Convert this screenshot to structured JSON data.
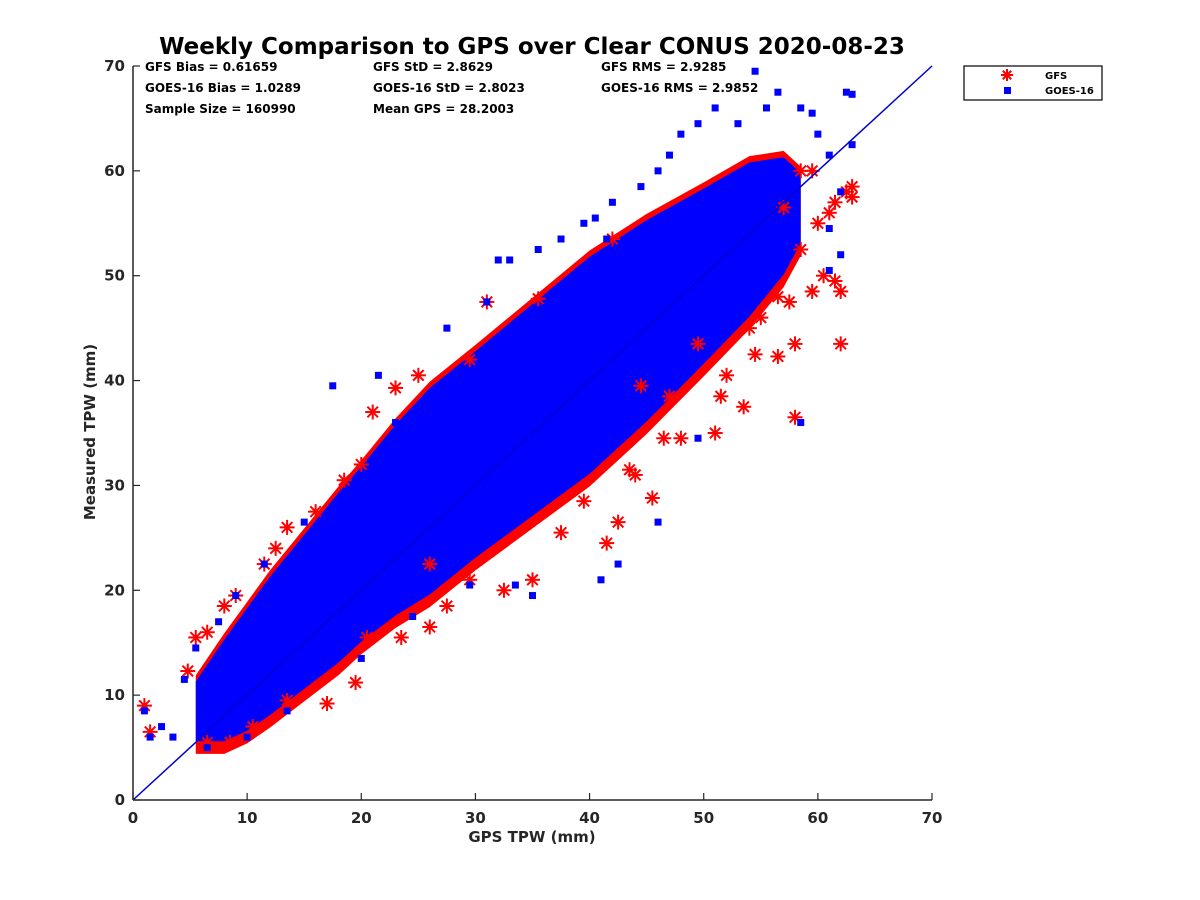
{
  "chart_data": {
    "type": "scatter",
    "title": "Weekly Comparison to GPS over Clear CONUS 2020-08-23",
    "xlabel": "GPS TPW (mm)",
    "ylabel": "Measured TPW (mm)",
    "xlim": [
      0,
      70
    ],
    "ylim": [
      0,
      70
    ],
    "xticks": [
      "0",
      "10",
      "20",
      "30",
      "40",
      "50",
      "60",
      "70"
    ],
    "yticks": [
      "0",
      "10",
      "20",
      "30",
      "40",
      "50",
      "60",
      "70"
    ],
    "grid": false,
    "legend_position": "top-right-outside",
    "reference_line": {
      "x": [
        0,
        70
      ],
      "y": [
        0,
        70
      ],
      "color": "#0000cc"
    },
    "stats": [
      [
        "GFS Bias = 0.61659",
        "GFS StD = 2.8629",
        "GFS RMS = 2.9285"
      ],
      [
        "GOES-16 Bias = 1.0289",
        "GOES-16 StD = 2.8023",
        "GOES-16 RMS = 2.9852"
      ],
      [
        "Sample Size = 160990",
        "Mean GPS = 28.2003",
        ""
      ]
    ],
    "series": [
      {
        "name": "GFS",
        "color": "#ff0000",
        "marker": "asterisk",
        "points": [
          [
            1.0,
            9.0
          ],
          [
            1.5,
            6.5
          ],
          [
            4.8,
            12.3
          ],
          [
            5.5,
            15.5
          ],
          [
            6.5,
            16.0
          ],
          [
            8.0,
            18.5
          ],
          [
            9.0,
            19.5
          ],
          [
            11.5,
            22.5
          ],
          [
            12.5,
            24.0
          ],
          [
            13.5,
            26.0
          ],
          [
            16.0,
            27.5
          ],
          [
            18.5,
            30.5
          ],
          [
            20.0,
            32.0
          ],
          [
            21.0,
            37.0
          ],
          [
            23.0,
            39.3
          ],
          [
            25.0,
            40.5
          ],
          [
            29.5,
            42.0
          ],
          [
            31.0,
            47.5
          ],
          [
            35.5,
            47.8
          ],
          [
            6.5,
            5.5
          ],
          [
            8.5,
            5.5
          ],
          [
            10.5,
            7.0
          ],
          [
            13.5,
            9.5
          ],
          [
            17.0,
            9.2
          ],
          [
            19.5,
            11.2
          ],
          [
            20.5,
            15.5
          ],
          [
            23.5,
            15.5
          ],
          [
            26.0,
            16.5
          ],
          [
            27.5,
            18.5
          ],
          [
            29.5,
            21.0
          ],
          [
            32.5,
            20.0
          ],
          [
            35.0,
            21.0
          ],
          [
            37.5,
            25.5
          ],
          [
            39.5,
            28.5
          ],
          [
            41.5,
            24.5
          ],
          [
            42.5,
            26.5
          ],
          [
            45.5,
            28.8
          ],
          [
            43.5,
            31.5
          ],
          [
            44.0,
            31.0
          ],
          [
            46.5,
            34.5
          ],
          [
            48.0,
            34.5
          ],
          [
            51.0,
            35.0
          ],
          [
            51.5,
            38.5
          ],
          [
            53.5,
            37.5
          ],
          [
            54.5,
            42.5
          ],
          [
            56.5,
            42.3
          ],
          [
            58.0,
            36.5
          ],
          [
            58.0,
            43.5
          ],
          [
            62.0,
            43.5
          ],
          [
            52.0,
            40.5
          ],
          [
            54.0,
            45.0
          ],
          [
            55.0,
            46.0
          ],
          [
            56.5,
            48.0
          ],
          [
            57.5,
            47.5
          ],
          [
            59.5,
            48.5
          ],
          [
            60.5,
            50.0
          ],
          [
            61.5,
            49.5
          ],
          [
            62.0,
            48.5
          ],
          [
            58.5,
            52.5
          ],
          [
            60.0,
            55.0
          ],
          [
            61.0,
            56.0
          ],
          [
            61.5,
            57.0
          ],
          [
            62.5,
            58.0
          ],
          [
            63.0,
            58.5
          ],
          [
            63.0,
            57.5
          ],
          [
            58.5,
            60.0
          ],
          [
            59.5,
            60.0
          ],
          [
            57.0,
            56.5
          ],
          [
            42.0,
            53.5
          ],
          [
            44.5,
            39.5
          ],
          [
            47.0,
            38.5
          ],
          [
            49.5,
            43.5
          ],
          [
            26.0,
            22.5
          ]
        ]
      },
      {
        "name": "GOES-16",
        "color": "#0000ff",
        "marker": "square",
        "points": [
          [
            1.0,
            8.5
          ],
          [
            1.5,
            6.0
          ],
          [
            4.5,
            11.5
          ],
          [
            5.5,
            14.5
          ],
          [
            7.5,
            17.0
          ],
          [
            9.0,
            19.5
          ],
          [
            11.5,
            22.5
          ],
          [
            15.0,
            26.5
          ],
          [
            17.5,
            39.5
          ],
          [
            21.5,
            40.5
          ],
          [
            23.0,
            36.0
          ],
          [
            27.5,
            45.0
          ],
          [
            31.0,
            47.5
          ],
          [
            32.0,
            51.5
          ],
          [
            33.0,
            51.5
          ],
          [
            35.5,
            52.5
          ],
          [
            37.5,
            53.5
          ],
          [
            39.5,
            55.0
          ],
          [
            40.5,
            55.5
          ],
          [
            41.5,
            53.5
          ],
          [
            42.0,
            57.0
          ],
          [
            44.5,
            58.5
          ],
          [
            46.0,
            60.0
          ],
          [
            47.0,
            61.5
          ],
          [
            48.0,
            63.5
          ],
          [
            49.5,
            64.5
          ],
          [
            51.0,
            66.0
          ],
          [
            53.0,
            64.5
          ],
          [
            54.5,
            69.5
          ],
          [
            55.5,
            66.0
          ],
          [
            56.5,
            67.5
          ],
          [
            58.5,
            66.0
          ],
          [
            59.5,
            65.5
          ],
          [
            62.5,
            67.5
          ],
          [
            63.0,
            67.3
          ],
          [
            63.0,
            62.5
          ],
          [
            60.0,
            63.5
          ],
          [
            61.0,
            61.5
          ],
          [
            62.0,
            58.0
          ],
          [
            61.0,
            54.5
          ],
          [
            62.0,
            52.0
          ],
          [
            61.0,
            50.5
          ],
          [
            58.5,
            36.0
          ],
          [
            49.5,
            34.5
          ],
          [
            46.0,
            26.5
          ],
          [
            42.5,
            22.5
          ],
          [
            41.0,
            21.0
          ],
          [
            35.0,
            19.5
          ],
          [
            33.5,
            20.5
          ],
          [
            29.5,
            20.5
          ],
          [
            24.5,
            17.5
          ],
          [
            20.0,
            13.5
          ],
          [
            13.5,
            8.5
          ],
          [
            10.0,
            6.0
          ],
          [
            6.5,
            5.0
          ],
          [
            3.5,
            6.0
          ],
          [
            2.5,
            7.0
          ]
        ]
      }
    ],
    "density": [
      {
        "x": 5.5,
        "lo": 5.0,
        "hi": 11.5
      },
      {
        "x": 8,
        "lo": 5.0,
        "hi": 15.5
      },
      {
        "x": 10,
        "lo": 6.0,
        "hi": 18.5
      },
      {
        "x": 12,
        "lo": 7.5,
        "hi": 21.5
      },
      {
        "x": 15,
        "lo": 10.0,
        "hi": 25.5
      },
      {
        "x": 18,
        "lo": 12.5,
        "hi": 29.5
      },
      {
        "x": 20,
        "lo": 14.5,
        "hi": 32.0
      },
      {
        "x": 23,
        "lo": 17.0,
        "hi": 36.0
      },
      {
        "x": 26,
        "lo": 19.0,
        "hi": 39.5
      },
      {
        "x": 30,
        "lo": 22.5,
        "hi": 43.0
      },
      {
        "x": 35,
        "lo": 26.5,
        "hi": 47.5
      },
      {
        "x": 40,
        "lo": 30.5,
        "hi": 52.0
      },
      {
        "x": 45,
        "lo": 35.5,
        "hi": 55.5
      },
      {
        "x": 50,
        "lo": 41.0,
        "hi": 58.5
      },
      {
        "x": 54,
        "lo": 45.5,
        "hi": 61.0
      },
      {
        "x": 57,
        "lo": 49.5,
        "hi": 61.5
      },
      {
        "x": 58.5,
        "lo": 52.5,
        "hi": 60.0
      }
    ]
  }
}
